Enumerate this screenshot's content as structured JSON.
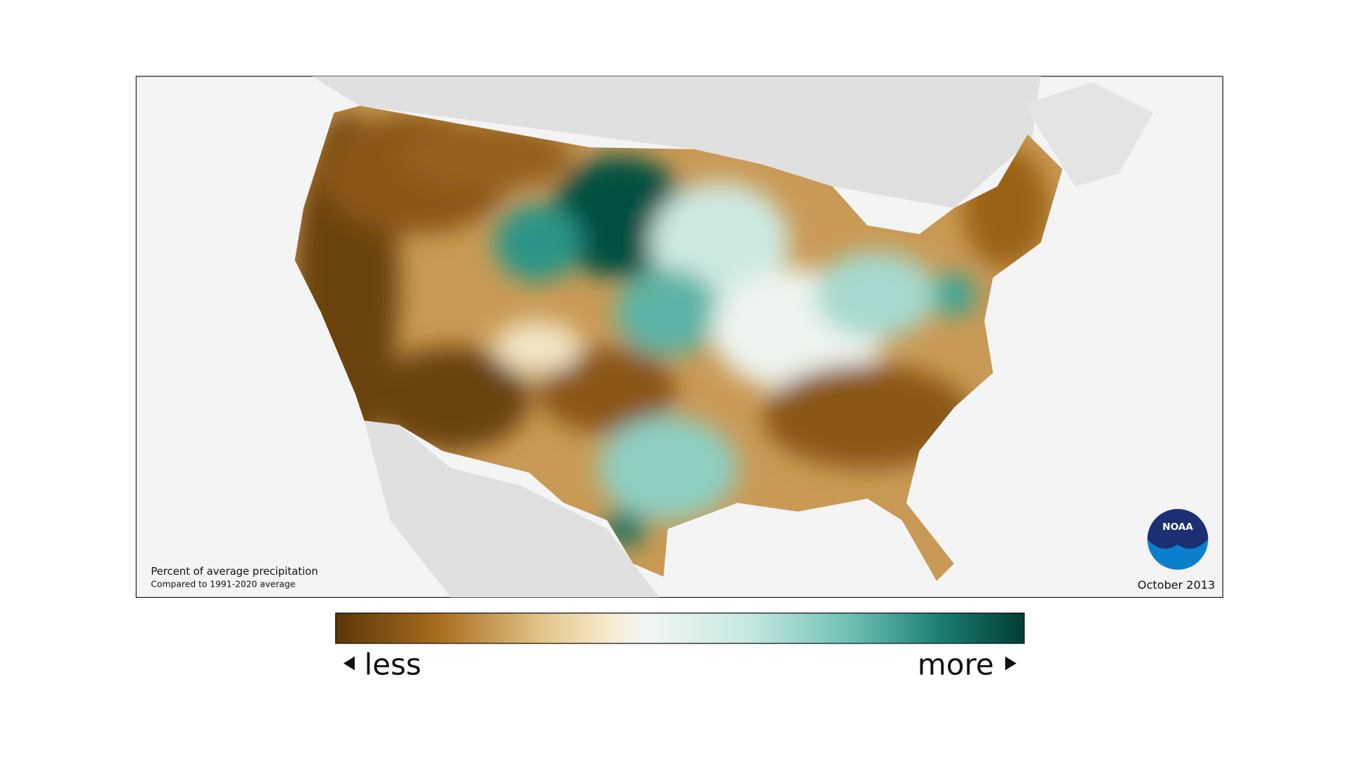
{
  "map": {
    "caption_title": "Percent of average precipitation",
    "caption_subtitle": "Compared to 1991-2020 average",
    "date": "October 2013",
    "logo_text": "NOAA"
  },
  "legend": {
    "low_label": "less",
    "high_label": "more"
  }
}
